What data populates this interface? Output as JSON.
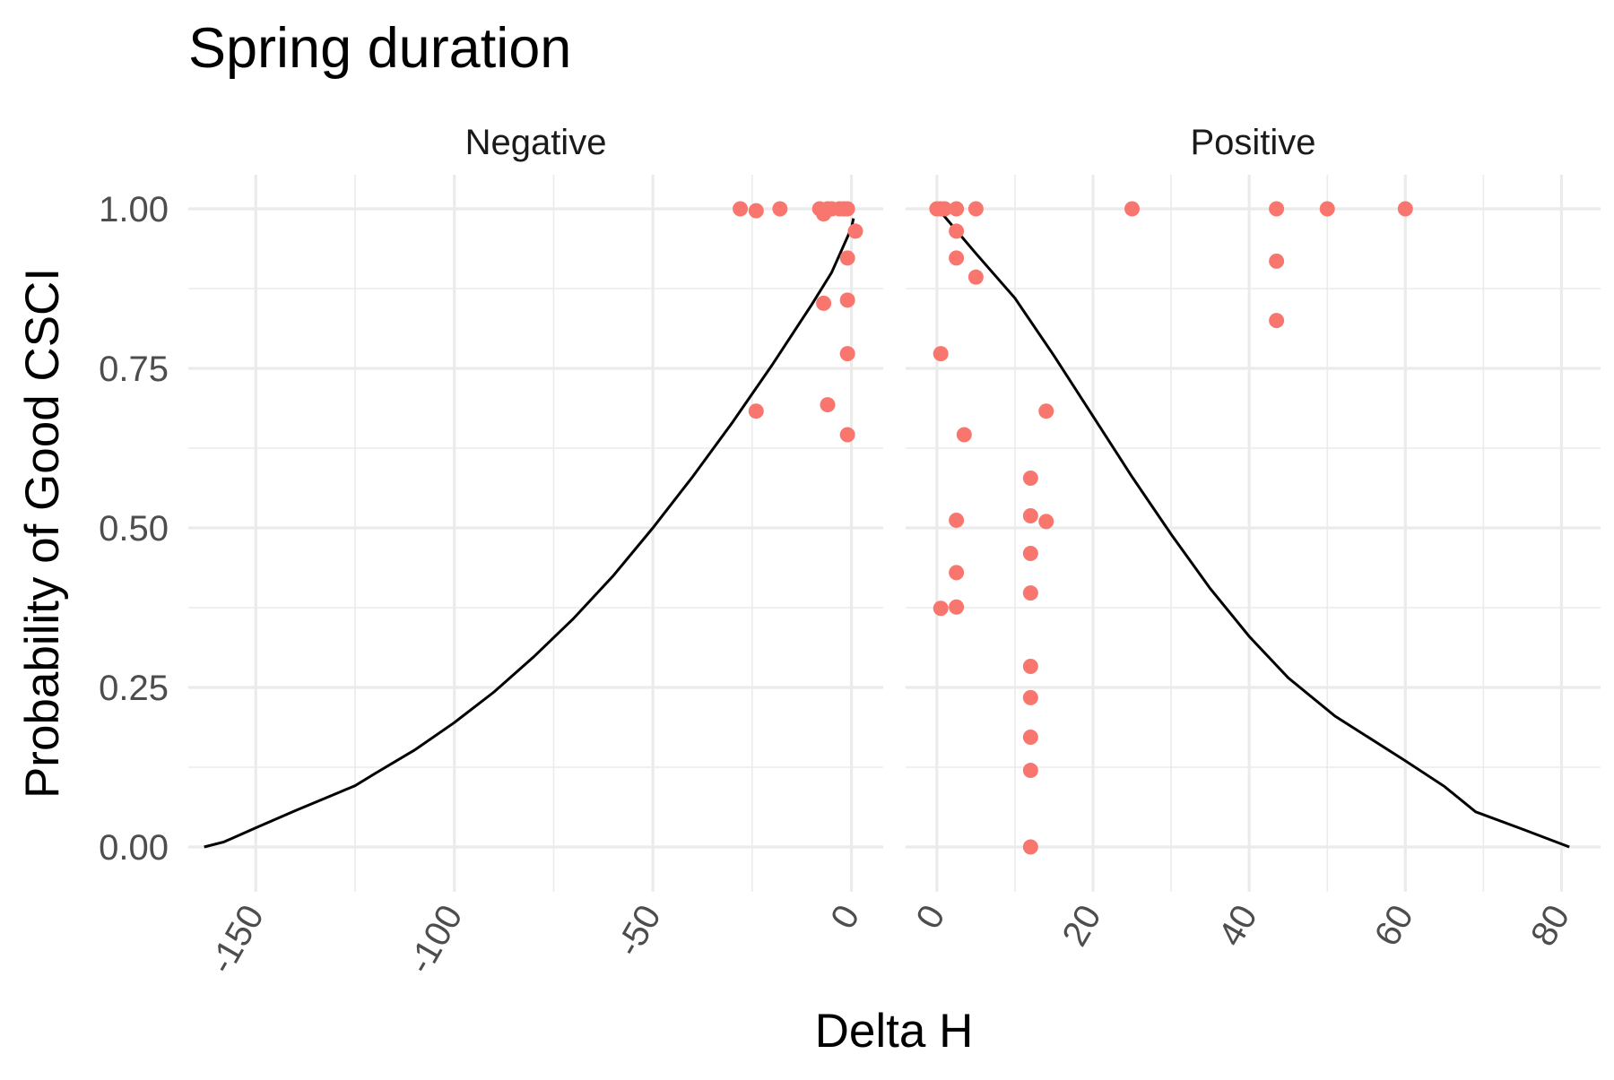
{
  "chart_data": {
    "type": "scatter",
    "title": "Spring duration",
    "xlabel": "Delta H",
    "ylabel": "Probability of Good CSCI",
    "ylim": [
      0,
      1
    ],
    "yticks": [
      0,
      0.25,
      0.5,
      0.75,
      1
    ],
    "ytick_labels": [
      "0.00",
      "0.25",
      "0.50",
      "0.75",
      "1.00"
    ],
    "grid": true,
    "point_color": "#F8766D",
    "line_color": "#000000",
    "panels": [
      {
        "label": "Negative",
        "xlim": [
          -167,
          8
        ],
        "xticks": [
          -150,
          -100,
          -50,
          0
        ],
        "xtick_labels": [
          "-150",
          "-100",
          "-50",
          "0"
        ],
        "curve": [
          [
            -163,
            0.0
          ],
          [
            -158,
            0.008
          ],
          [
            -150,
            0.03
          ],
          [
            -140,
            0.057
          ],
          [
            -130,
            0.083
          ],
          [
            -125,
            0.096
          ],
          [
            -120,
            0.115
          ],
          [
            -110,
            0.152
          ],
          [
            -100,
            0.195
          ],
          [
            -90,
            0.243
          ],
          [
            -80,
            0.298
          ],
          [
            -70,
            0.358
          ],
          [
            -60,
            0.425
          ],
          [
            -50,
            0.5
          ],
          [
            -40,
            0.58
          ],
          [
            -30,
            0.665
          ],
          [
            -20,
            0.755
          ],
          [
            -10,
            0.85
          ],
          [
            -5,
            0.9
          ],
          [
            0,
            0.97
          ],
          [
            0.5,
            0.985
          ]
        ],
        "points": [
          [
            -28,
            1.0
          ],
          [
            -24,
            0.997
          ],
          [
            -18,
            1.0
          ],
          [
            -8,
            1.0
          ],
          [
            -7,
            0.992
          ],
          [
            -6,
            1.0
          ],
          [
            -5,
            1.0
          ],
          [
            -3,
            1.0
          ],
          [
            -2,
            1.0
          ],
          [
            -1,
            1.0
          ],
          [
            1,
            0.965
          ],
          [
            -1,
            0.923
          ],
          [
            -7,
            0.852
          ],
          [
            -1,
            0.857
          ],
          [
            -1,
            0.773
          ],
          [
            -24,
            0.683
          ],
          [
            -6,
            0.693
          ],
          [
            -1,
            0.646
          ]
        ]
      },
      {
        "label": "Positive",
        "xlim": [
          -4,
          85
        ],
        "xticks": [
          0,
          20,
          40,
          60,
          80
        ],
        "xtick_labels": [
          "0",
          "20",
          "40",
          "60",
          "80"
        ],
        "curve": [
          [
            0.5,
            0.995
          ],
          [
            5,
            0.93
          ],
          [
            10,
            0.86
          ],
          [
            15,
            0.77
          ],
          [
            20,
            0.675
          ],
          [
            25,
            0.58
          ],
          [
            30,
            0.49
          ],
          [
            35,
            0.405
          ],
          [
            40,
            0.33
          ],
          [
            45,
            0.265
          ],
          [
            51,
            0.205
          ],
          [
            60,
            0.135
          ],
          [
            65,
            0.095
          ],
          [
            69,
            0.055
          ],
          [
            75,
            0.028
          ],
          [
            81,
            0.0
          ]
        ],
        "points": [
          [
            0,
            1.0
          ],
          [
            0.5,
            1.0
          ],
          [
            1,
            1.0
          ],
          [
            2.5,
            1.0
          ],
          [
            5,
            1.0
          ],
          [
            25,
            1.0
          ],
          [
            43.5,
            1.0
          ],
          [
            50,
            1.0
          ],
          [
            60,
            1.0
          ],
          [
            2.5,
            0.965
          ],
          [
            2.5,
            0.923
          ],
          [
            5,
            0.893
          ],
          [
            43.5,
            0.918
          ],
          [
            43.5,
            0.825
          ],
          [
            0.5,
            0.773
          ],
          [
            14,
            0.683
          ],
          [
            3.5,
            0.646
          ],
          [
            12,
            0.578
          ],
          [
            2.5,
            0.512
          ],
          [
            12,
            0.519
          ],
          [
            14,
            0.51
          ],
          [
            12,
            0.46
          ],
          [
            2.5,
            0.43
          ],
          [
            12,
            0.398
          ],
          [
            0.5,
            0.374
          ],
          [
            2.5,
            0.376
          ],
          [
            12,
            0.283
          ],
          [
            12,
            0.234
          ],
          [
            12,
            0.172
          ],
          [
            12,
            0.12
          ],
          [
            12,
            0.0
          ]
        ]
      }
    ]
  }
}
